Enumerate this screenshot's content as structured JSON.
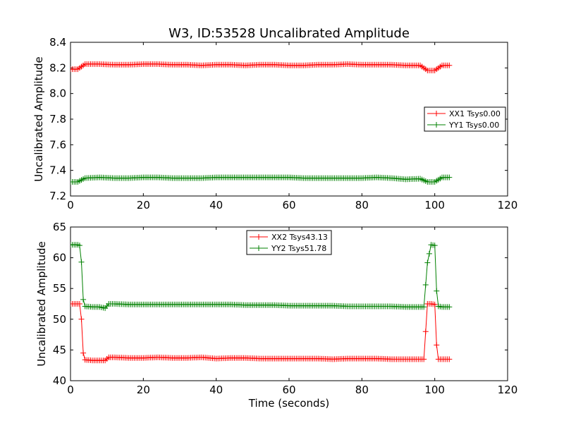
{
  "title": "W3, ID:53528 Uncalibrated Amplitude",
  "colors": {
    "xx": "#ff0000",
    "yy": "#008000"
  },
  "chart_data": [
    {
      "type": "line",
      "title": "W3, ID:53528 Uncalibrated Amplitude",
      "xlabel": "",
      "ylabel": "Uncalibrated Amplitude",
      "xlim": [
        0,
        120
      ],
      "ylim": [
        7.2,
        8.4
      ],
      "xticks": [
        "0",
        "20",
        "40",
        "60",
        "80",
        "100",
        "120"
      ],
      "yticks": [
        "7.2",
        "7.4",
        "7.6",
        "7.8",
        "8.0",
        "8.2",
        "8.4"
      ],
      "grid": false,
      "legend_position": "center-right",
      "series": [
        {
          "name": "XX1 Tsys0.00",
          "color": "#ff0000",
          "marker": "+",
          "x": [
            0,
            2,
            4,
            8,
            12,
            16,
            20,
            24,
            28,
            32,
            36,
            40,
            44,
            48,
            52,
            56,
            60,
            64,
            68,
            72,
            76,
            80,
            84,
            88,
            92,
            96,
            98,
            100,
            102,
            104
          ],
          "y": [
            8.19,
            8.19,
            8.23,
            8.23,
            8.225,
            8.225,
            8.23,
            8.23,
            8.225,
            8.225,
            8.22,
            8.225,
            8.225,
            8.22,
            8.225,
            8.225,
            8.22,
            8.22,
            8.225,
            8.225,
            8.23,
            8.225,
            8.225,
            8.225,
            8.22,
            8.22,
            8.18,
            8.18,
            8.22,
            8.22
          ]
        },
        {
          "name": "YY1 Tsys0.00",
          "color": "#008000",
          "marker": "+",
          "x": [
            0,
            2,
            4,
            8,
            12,
            16,
            20,
            24,
            28,
            32,
            36,
            40,
            44,
            48,
            52,
            56,
            60,
            64,
            68,
            72,
            76,
            80,
            84,
            88,
            92,
            96,
            98,
            100,
            102,
            104
          ],
          "y": [
            7.31,
            7.31,
            7.34,
            7.345,
            7.34,
            7.34,
            7.345,
            7.345,
            7.34,
            7.34,
            7.34,
            7.345,
            7.345,
            7.345,
            7.345,
            7.345,
            7.345,
            7.34,
            7.34,
            7.34,
            7.34,
            7.34,
            7.345,
            7.34,
            7.33,
            7.335,
            7.31,
            7.31,
            7.345,
            7.345
          ]
        }
      ]
    },
    {
      "type": "line",
      "title": "",
      "xlabel": "Time (seconds)",
      "ylabel": "Uncalibrated Amplitude",
      "xlim": [
        0,
        120
      ],
      "ylim": [
        40,
        65
      ],
      "xticks": [
        "0",
        "20",
        "40",
        "60",
        "80",
        "100",
        "120"
      ],
      "yticks": [
        "40",
        "45",
        "50",
        "55",
        "60",
        "65"
      ],
      "grid": false,
      "legend_position": "top-center",
      "series": [
        {
          "name": "XX2 Tsys43.13",
          "color": "#ff0000",
          "marker": "+",
          "x": [
            0,
            1,
            2,
            2.5,
            3,
            3.5,
            4,
            6,
            8,
            9.5,
            10.5,
            12,
            16,
            20,
            24,
            28,
            32,
            36,
            40,
            44,
            48,
            52,
            56,
            60,
            64,
            68,
            72,
            76,
            80,
            84,
            88,
            92,
            96,
            97,
            98,
            99,
            100,
            100.5,
            101,
            102,
            104
          ],
          "y": [
            52.5,
            52.5,
            52.5,
            52.5,
            50.0,
            44.5,
            43.4,
            43.3,
            43.3,
            43.3,
            43.8,
            43.8,
            43.7,
            43.7,
            43.8,
            43.7,
            43.7,
            43.8,
            43.6,
            43.7,
            43.7,
            43.6,
            43.6,
            43.6,
            43.6,
            43.6,
            43.5,
            43.6,
            43.6,
            43.6,
            43.5,
            43.5,
            43.5,
            43.5,
            52.5,
            52.5,
            52.4,
            45.8,
            43.5,
            43.5,
            43.5
          ]
        },
        {
          "name": "YY2 Tsys51.78",
          "color": "#008000",
          "marker": "+",
          "x": [
            0,
            1,
            2,
            2.5,
            3,
            3.5,
            4,
            6,
            8,
            9.5,
            10.5,
            12,
            16,
            20,
            24,
            28,
            32,
            36,
            40,
            44,
            48,
            52,
            56,
            60,
            64,
            68,
            72,
            76,
            80,
            84,
            88,
            92,
            96,
            97,
            98,
            99,
            100,
            100.5,
            101,
            102,
            104
          ],
          "y": [
            62.1,
            62.1,
            62.1,
            62.0,
            59.3,
            53.2,
            52.1,
            52.0,
            52.0,
            51.8,
            52.5,
            52.5,
            52.4,
            52.4,
            52.4,
            52.4,
            52.4,
            52.4,
            52.4,
            52.4,
            52.3,
            52.3,
            52.3,
            52.2,
            52.2,
            52.2,
            52.2,
            52.1,
            52.1,
            52.1,
            52.1,
            52.0,
            52.0,
            52.0,
            59.2,
            62.1,
            62.0,
            54.6,
            52.1,
            52.0,
            52.0
          ]
        }
      ]
    }
  ]
}
